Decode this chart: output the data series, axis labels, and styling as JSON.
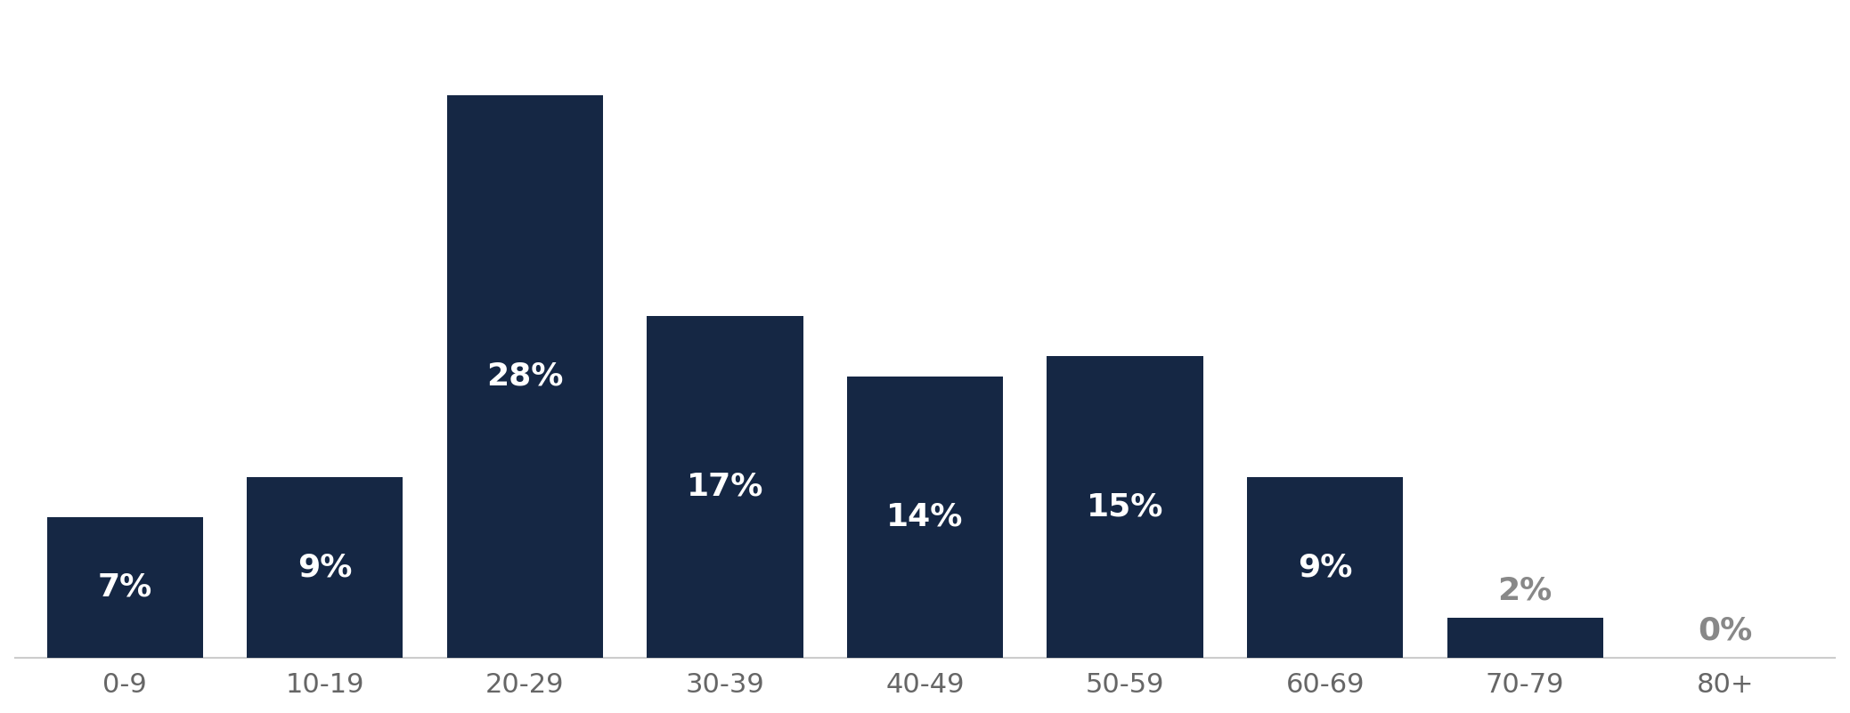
{
  "categories": [
    "0-9",
    "10-19",
    "20-29",
    "30-39",
    "40-49",
    "50-59",
    "60-69",
    "70-79",
    "80+"
  ],
  "values": [
    7,
    9,
    28,
    17,
    14,
    15,
    9,
    2,
    0
  ],
  "bar_color": "#152744",
  "label_color_inside": "#ffffff",
  "label_color_outside": "#888888",
  "outside_threshold": 4,
  "background_color": "#ffffff",
  "label_fontsize": 26,
  "tick_fontsize": 22,
  "tick_color": "#666666",
  "bar_width": 0.78,
  "ylim": [
    0,
    32
  ],
  "spine_color": "#cccccc"
}
